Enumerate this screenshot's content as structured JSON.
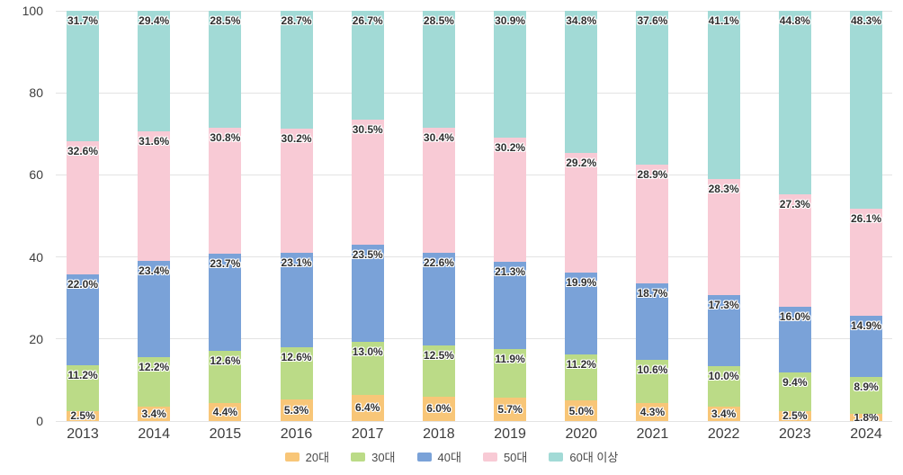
{
  "chart_data": {
    "type": "bar",
    "stacked": true,
    "title": "",
    "xlabel": "",
    "ylabel": "",
    "ylim": [
      0,
      100
    ],
    "yticks": [
      0,
      20,
      40,
      60,
      80,
      100
    ],
    "grid": true,
    "legend_position": "bottom",
    "value_suffix": "%",
    "categories": [
      "2013",
      "2014",
      "2015",
      "2016",
      "2017",
      "2018",
      "2019",
      "2020",
      "2021",
      "2022",
      "2023",
      "2024"
    ],
    "series": [
      {
        "name": "20대",
        "color": "#f8c678",
        "values": [
          2.5,
          3.4,
          4.4,
          5.3,
          6.4,
          6.0,
          5.7,
          5.0,
          4.3,
          3.4,
          2.5,
          1.8
        ]
      },
      {
        "name": "30대",
        "color": "#bbdb87",
        "values": [
          11.2,
          12.2,
          12.6,
          12.6,
          13.0,
          12.5,
          11.9,
          11.2,
          10.6,
          10.0,
          9.4,
          8.9
        ]
      },
      {
        "name": "40대",
        "color": "#7aa2d8",
        "values": [
          22.0,
          23.4,
          23.7,
          23.1,
          23.5,
          22.6,
          21.3,
          19.9,
          18.7,
          17.3,
          16.0,
          14.9
        ]
      },
      {
        "name": "50대",
        "color": "#f8cad5",
        "values": [
          32.6,
          31.6,
          30.8,
          30.2,
          30.5,
          30.4,
          30.2,
          29.2,
          28.9,
          28.3,
          27.3,
          26.1
        ]
      },
      {
        "name": "60대 이상",
        "color": "#a2dad6",
        "values": [
          31.7,
          29.4,
          28.5,
          28.7,
          26.7,
          28.5,
          30.9,
          34.8,
          37.6,
          41.1,
          44.8,
          48.3
        ]
      }
    ]
  },
  "style": {
    "gridline_color": "#e3e3e3",
    "axis_text_color": "#3d3d3d",
    "value_label_color": "#2f2f2f",
    "legend_text_color": "#4a4a4a",
    "background_color": "#ffffff"
  }
}
